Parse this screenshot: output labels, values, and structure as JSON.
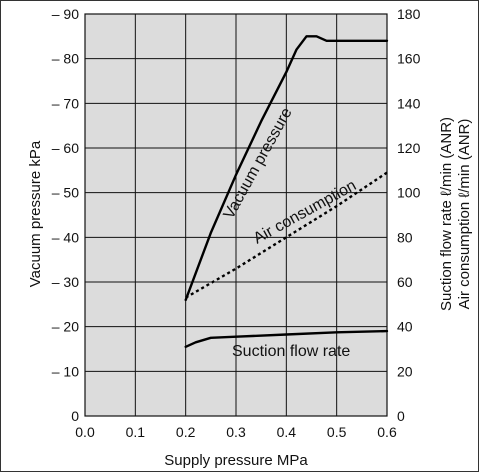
{
  "chart_data": {
    "type": "line",
    "xlabel": "Supply pressure MPa",
    "ylabel_left": "Vacuum pressure kPa",
    "ylabel_right_1": "Suction flow rate ℓ/min (ANR)",
    "ylabel_right_2": "Air consumption ℓ/min (ANR)",
    "xlim": [
      0.0,
      0.6
    ],
    "ylim_left": [
      0,
      -90
    ],
    "ylim_right": [
      0,
      180
    ],
    "grid": true,
    "x_ticks": [
      "0.0",
      "0.1",
      "0.2",
      "0.3",
      "0.4",
      "0.5",
      "0.6"
    ],
    "left_ticks": [
      "0",
      "– 10",
      "– 20",
      "– 30",
      "– 40",
      "– 50",
      "– 60",
      "– 70",
      "– 80",
      "– 90"
    ],
    "right_ticks": [
      "0",
      "20",
      "40",
      "60",
      "80",
      "100",
      "120",
      "140",
      "160",
      "180"
    ],
    "series": [
      {
        "name": "Vacuum pressure",
        "axis": "left",
        "style": "solid",
        "x": [
          0.2,
          0.25,
          0.3,
          0.35,
          0.4,
          0.42,
          0.44,
          0.46,
          0.48,
          0.5,
          0.6
        ],
        "y": [
          -26,
          -41,
          -54,
          -66,
          -77,
          -82,
          -85,
          -85,
          -84,
          -84,
          -84
        ]
      },
      {
        "name": "Air consumption",
        "axis": "right",
        "style": "dotted",
        "x": [
          0.2,
          0.3,
          0.4,
          0.5,
          0.6
        ],
        "y": [
          53,
          66,
          80,
          94,
          109
        ]
      },
      {
        "name": "Suction flow rate",
        "axis": "right",
        "style": "solid",
        "x": [
          0.2,
          0.22,
          0.25,
          0.3,
          0.4,
          0.5,
          0.6
        ],
        "y": [
          31,
          33,
          35,
          35.5,
          36.5,
          37.5,
          38
        ]
      }
    ]
  },
  "colors": {
    "plot_bg": "#dcdcdc",
    "grid": "#111111",
    "line": "#000000",
    "frame": "#333333"
  }
}
